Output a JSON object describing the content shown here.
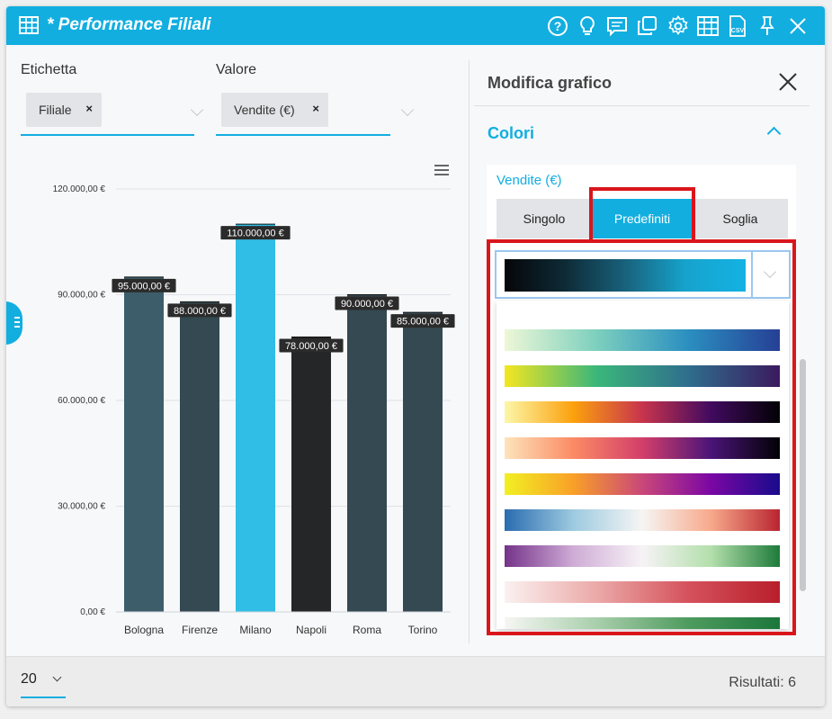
{
  "window": {
    "title": "* Performance Filiali",
    "toolbar_icons": [
      "help-icon",
      "lightbulb-icon",
      "comment-icon",
      "duplicate-icon",
      "gear-icon",
      "table-icon",
      "csv-export-icon",
      "pin-icon",
      "close-icon"
    ]
  },
  "filters": {
    "label_field": {
      "label": "Etichetta",
      "chip": "Filiale"
    },
    "value_field": {
      "label": "Valore",
      "chip": "Vendite (€)"
    },
    "chip_remove": "×"
  },
  "chart_data": {
    "type": "bar",
    "categories": [
      "Bologna",
      "Firenze",
      "Milano",
      "Napoli",
      "Roma",
      "Torino"
    ],
    "values": [
      95000,
      88000,
      110000,
      78000,
      90000,
      85000
    ],
    "data_labels": [
      "95.000,00 €",
      "88.000,00 €",
      "110.000,00 €",
      "78.000,00 €",
      "90.000,00 €",
      "85.000,00 €"
    ],
    "colors": [
      "#3d5d6b",
      "#344951",
      "#30bde6",
      "#252627",
      "#344951",
      "#344951"
    ],
    "ylim": [
      0,
      120000
    ],
    "yticks": [
      0,
      30000,
      60000,
      90000,
      120000
    ],
    "ytick_labels": [
      "0,00 €",
      "30.000,00 €",
      "60.000,00 €",
      "90.000,00 €",
      "120.000,00 €"
    ],
    "grid": true,
    "title": "",
    "xlabel": "",
    "ylabel": ""
  },
  "editor": {
    "title": "Modifica grafico",
    "section": "Colori",
    "series_label": "Vendite (€)",
    "tabs": [
      "Singolo",
      "Predefiniti",
      "Soglia"
    ],
    "active_tab": "Predefiniti",
    "palettes": [
      [
        "#eef7d6",
        "#7dd0be",
        "#2b8fc0",
        "#263f95"
      ],
      [
        "#f4e620",
        "#3bb77a",
        "#2f6e8d",
        "#3b1a5e"
      ],
      [
        "#fcf7a8",
        "#fca10d",
        "#c8344d",
        "#410a5f",
        "#020104"
      ],
      [
        "#fde4bb",
        "#fb8b64",
        "#d33f6a",
        "#4a1478",
        "#020104"
      ],
      [
        "#f2f022",
        "#f9a028",
        "#ca4779",
        "#7a07a4",
        "#180b8c"
      ],
      [
        "#2a6cb0",
        "#9dcae0",
        "#f6f5f4",
        "#f7a98b",
        "#b9242f"
      ],
      [
        "#75338a",
        "#cfacd6",
        "#f7f3f6",
        "#b3dfab",
        "#1e7b3a"
      ],
      [
        "#fbf1f1",
        "#ebaaa9",
        "#d5525c",
        "#b81e2b"
      ],
      [
        "#f6f6f4",
        "#a9cfac",
        "#4f9b5f",
        "#1b773b"
      ]
    ]
  },
  "footer": {
    "page_size": "20",
    "results": "Risultati: 6"
  }
}
